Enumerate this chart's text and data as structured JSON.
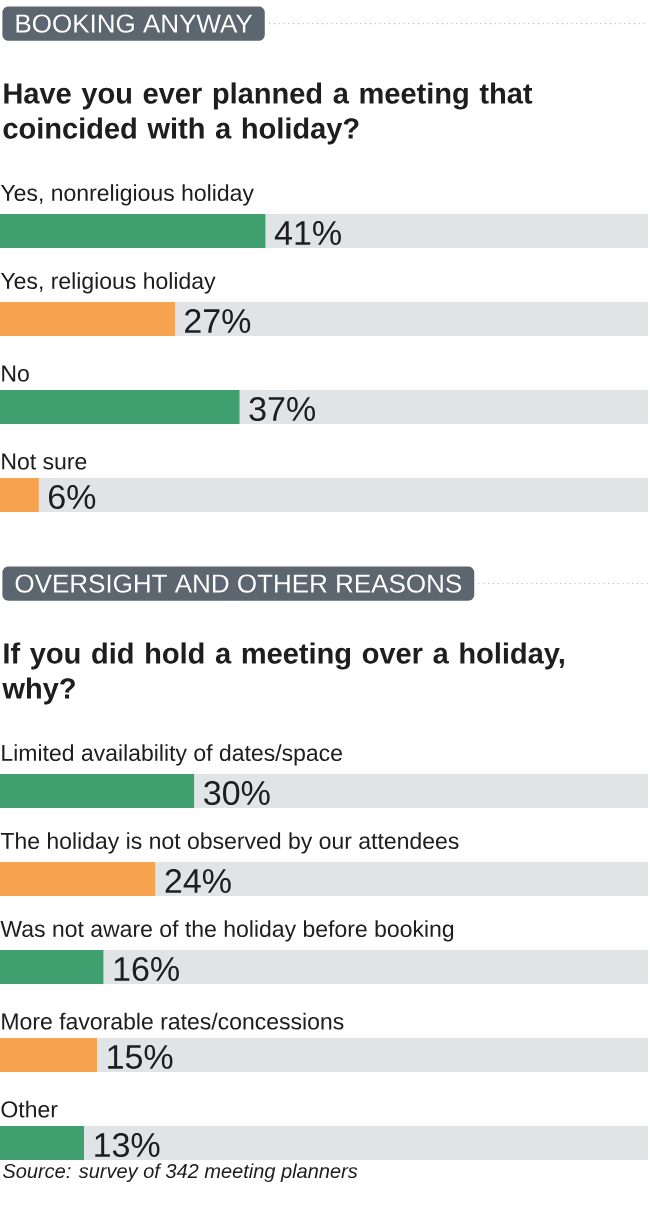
{
  "chart_data": [
    {
      "type": "bar",
      "orientation": "horizontal",
      "stacked": true,
      "title": "BOOKING ANYWAY",
      "subtitle": "Have you ever planned a meeting that coincided with a holiday?",
      "categories": [
        "Yes, nonreligious holiday",
        "Yes, religious holiday",
        "No",
        "Not sure"
      ],
      "series": [
        {
          "values": [
            41,
            27,
            37,
            6
          ],
          "value_labels": [
            "41%",
            "27%",
            "37%",
            "6%"
          ],
          "colors": [
            "#3f9f6e",
            "#f7a24f",
            "#3f9f6e",
            "#f7a24f"
          ]
        },
        {
          "values": [
            59,
            73,
            63,
            94
          ],
          "color": "#e1e4e6"
        }
      ],
      "xlim": [
        0,
        100
      ],
      "tick_labels": false
    },
    {
      "type": "bar",
      "orientation": "horizontal",
      "stacked": true,
      "title": "OVERSIGHT AND OTHER REASONS",
      "subtitle": "If you did hold a meeting over a holiday, why?",
      "categories": [
        "Limited availability of dates/space",
        "The holiday is not observed by our attendees",
        "Was not aware of the holiday before booking",
        "More favorable rates/concessions",
        "Other"
      ],
      "series": [
        {
          "values": [
            30,
            24,
            16,
            15,
            13
          ],
          "value_labels": [
            "30%",
            "24%",
            "16%",
            "15%",
            "13%"
          ],
          "colors": [
            "#3f9f6e",
            "#f7a24f",
            "#3f9f6e",
            "#f7a24f",
            "#3f9f6e"
          ]
        },
        {
          "values": [
            70,
            76,
            84,
            85,
            87
          ],
          "color": "#e1e4e6"
        }
      ],
      "xlim": [
        0,
        100
      ],
      "tick_labels": false,
      "annotations": [
        "Source: survey of 342 meeting planners"
      ]
    }
  ]
}
